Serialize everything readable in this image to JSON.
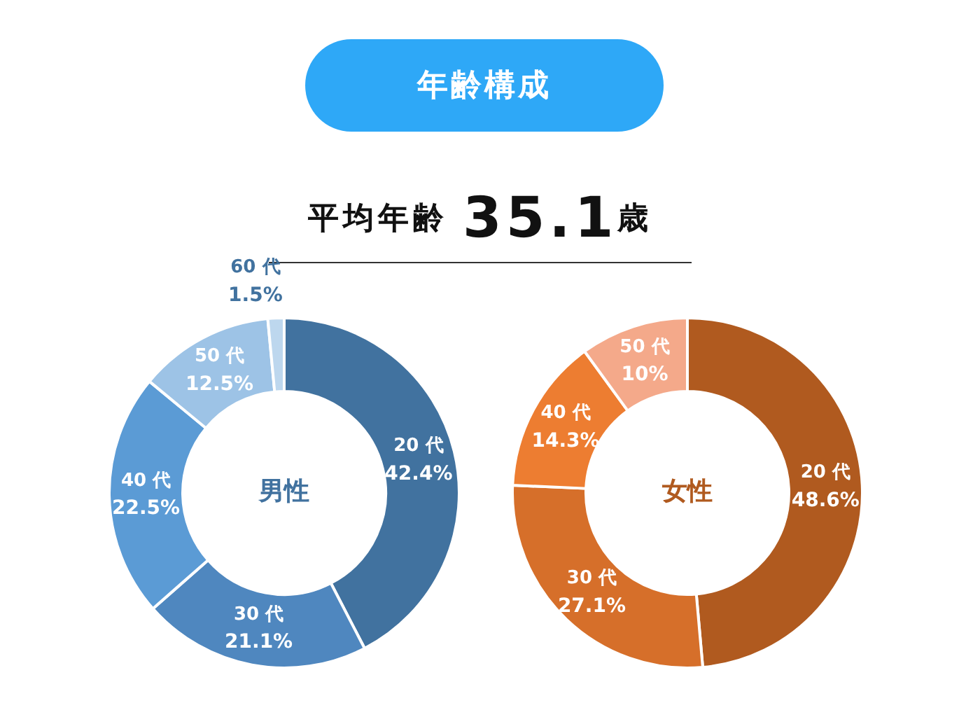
{
  "chart_data": [
    {
      "type": "other",
      "title": "年齢構成",
      "subtitle": "平均年齢 35.1歳"
    },
    {
      "type": "donut",
      "title": "男性",
      "categories": [
        "20 代",
        "30 代",
        "40 代",
        "50 代",
        "60 代"
      ],
      "values": [
        42.4,
        21.1,
        22.5,
        12.5,
        1.5
      ],
      "value_labels": [
        "42.4%",
        "21.1%",
        "22.5%",
        "12.5%",
        "1.5%"
      ],
      "colors": [
        "#41729f",
        "#4f87bf",
        "#5b9bd5",
        "#9dc3e6",
        "#bdd7ee"
      ],
      "legend": false
    },
    {
      "type": "donut",
      "title": "女性",
      "categories": [
        "20 代",
        "30 代",
        "40 代",
        "50 代"
      ],
      "values": [
        48.6,
        27.1,
        14.3,
        10
      ],
      "value_labels": [
        "48.6%",
        "27.1%",
        "14.3%",
        "10%"
      ],
      "colors": [
        "#b05a1f",
        "#d66f2a",
        "#ed7d31",
        "#f4a98a"
      ],
      "legend": false
    }
  ]
}
